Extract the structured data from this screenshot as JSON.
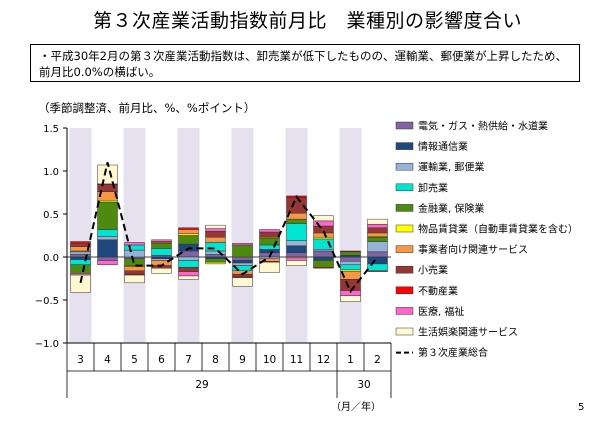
{
  "page": {
    "title": "第３次産業活動指数前月比　業種別の影響度合い",
    "note": "・平成30年2月の第３次産業活動指数は、卸売業が低下したものの、運輸業、郵便業が上昇したため、前月比0.0%の横ばい。",
    "subtitle": "（季節調整済、前月比、%、%ポイント）",
    "page_number": "5"
  },
  "chart_data": {
    "type": "bar",
    "stacked": true,
    "categories": [
      "3",
      "4",
      "5",
      "6",
      "7",
      "8",
      "9",
      "10",
      "11",
      "12",
      "1",
      "2"
    ],
    "year_labels": [
      {
        "label": "29",
        "from": 0,
        "to": 9
      },
      {
        "label": "30",
        "from": 10,
        "to": 11
      }
    ],
    "x_unit": "（月／年）",
    "ylim": [
      -1.0,
      1.5
    ],
    "yticks": [
      -1.0,
      -0.5,
      0.0,
      0.5,
      1.0,
      1.5
    ],
    "ytick_labels": [
      "−1.0",
      "−0.5",
      "0.0",
      "0.5",
      "1.0",
      "1.5"
    ],
    "shaded_categories": [
      0,
      2,
      4,
      6,
      8,
      10
    ],
    "shade_color": "#e6e1ef",
    "legend_position": "right",
    "series": [
      {
        "name": "電気・ガス・熱供給・水道業",
        "color": "#8064a2",
        "values": [
          0.03,
          -0.04,
          -0.02,
          0.02,
          0.07,
          0.03,
          -0.04,
          0.05,
          0.05,
          0.07,
          -0.05,
          0.06
        ]
      },
      {
        "name": "情報通信業",
        "color": "#1f497d",
        "values": [
          -0.03,
          0.2,
          0.0,
          -0.02,
          0.08,
          -0.02,
          -0.03,
          0.04,
          0.08,
          -0.04,
          0.02,
          -0.08
        ]
      },
      {
        "name": "運輸業, 郵便業",
        "color": "#95b3d7",
        "values": [
          0.03,
          0.04,
          0.08,
          -0.02,
          -0.04,
          0.04,
          -0.03,
          -0.02,
          0.06,
          0.02,
          -0.04,
          0.12
        ]
      },
      {
        "name": "卸売業",
        "color": "#00e5d1",
        "values": [
          -0.06,
          0.08,
          0.06,
          0.08,
          -0.08,
          0.1,
          -0.06,
          0.05,
          0.2,
          0.12,
          -0.06,
          -0.08
        ]
      },
      {
        "name": "金融業, 保険業",
        "color": "#4f8a10",
        "values": [
          -0.1,
          0.32,
          -0.08,
          0.06,
          0.1,
          -0.04,
          0.14,
          0.08,
          0.05,
          -0.08,
          0.04,
          0.05
        ]
      },
      {
        "name": "物品賃貸業（自動車賃貸業を含む）",
        "color": "#ffff00",
        "values": [
          0.01,
          0.02,
          -0.01,
          0.01,
          0.02,
          -0.02,
          0.0,
          0.01,
          -0.01,
          0.02,
          -0.02,
          0.01
        ]
      },
      {
        "name": "事業者向け関連サービス",
        "color": "#f79646",
        "values": [
          0.05,
          0.1,
          -0.05,
          -0.06,
          0.05,
          0.06,
          -0.04,
          -0.03,
          0.07,
          0.05,
          -0.09,
          0.04
        ]
      },
      {
        "name": "小売業",
        "color": "#953735",
        "values": [
          0.04,
          0.08,
          -0.04,
          -0.03,
          -0.05,
          0.07,
          -0.03,
          0.06,
          0.18,
          0.08,
          -0.13,
          0.06
        ]
      },
      {
        "name": "不動産業",
        "color": "#ff0000",
        "values": [
          0.02,
          0.01,
          -0.01,
          0.01,
          0.02,
          0.0,
          -0.01,
          -0.01,
          0.02,
          -0.01,
          0.01,
          -0.01
        ]
      },
      {
        "name": "医療, 福祉",
        "color": "#ff66cc",
        "values": [
          -0.02,
          -0.05,
          0.03,
          0.02,
          -0.05,
          0.03,
          0.02,
          0.03,
          -0.03,
          0.06,
          -0.06,
          0.04
        ]
      },
      {
        "name": "生活娯楽関連サービス",
        "color": "#fff8d0",
        "values": [
          -0.2,
          0.22,
          -0.09,
          -0.06,
          -0.04,
          0.04,
          -0.1,
          -0.12,
          -0.06,
          0.06,
          -0.07,
          0.06
        ]
      }
    ],
    "total": {
      "name": "第３次産業総合",
      "values": [
        -0.3,
        1.1,
        -0.1,
        -0.1,
        0.1,
        0.1,
        -0.2,
        0.0,
        0.7,
        0.3,
        -0.4,
        0.0
      ]
    }
  }
}
